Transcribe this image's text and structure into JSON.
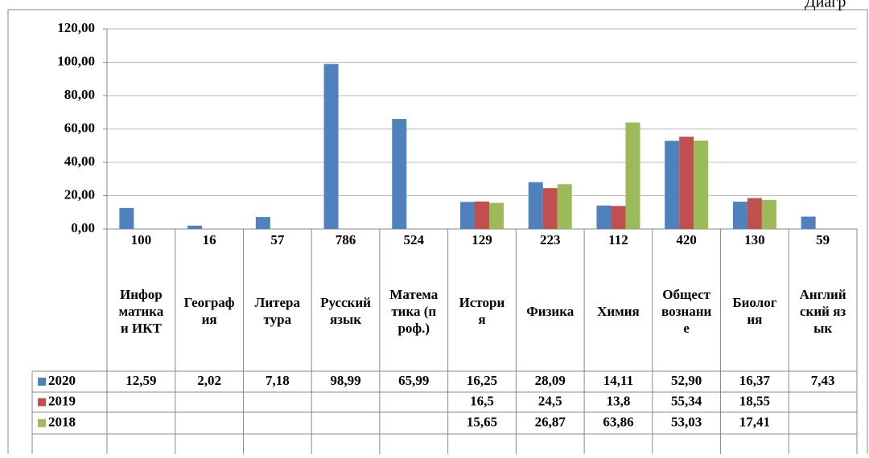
{
  "chart_data": {
    "type": "bar",
    "title": "Диагр",
    "categories": [
      "Информатика и ИКТ",
      "География",
      "Литература",
      "Русский язык",
      "Математика (проф.)",
      "История",
      "Физика",
      "Химия",
      "Обществознание",
      "Биология",
      "Английский язык"
    ],
    "participants": [
      100,
      16,
      57,
      786,
      524,
      129,
      223,
      112,
      420,
      130,
      59
    ],
    "series": [
      {
        "name": "2020",
        "color": "#4f81bd",
        "values": [
          12.59,
          2.02,
          7.18,
          98.99,
          65.99,
          16.25,
          28.09,
          14.11,
          52.9,
          16.37,
          7.43
        ],
        "value_labels": [
          "12,59",
          "2,02",
          "7,18",
          "98,99",
          "65,99",
          "16,25",
          "28,09",
          "14,11",
          "52,90",
          "16,37",
          "7,43"
        ]
      },
      {
        "name": "2019",
        "color": "#c0504d",
        "values": [
          null,
          null,
          null,
          null,
          null,
          16.5,
          24.5,
          13.8,
          55.34,
          18.55,
          null
        ],
        "value_labels": [
          null,
          null,
          null,
          null,
          null,
          "16,5",
          "24,5",
          "13,8",
          "55,34",
          "18,55",
          null
        ]
      },
      {
        "name": "2018",
        "color": "#9bbb59",
        "values": [
          null,
          null,
          null,
          null,
          null,
          15.65,
          26.87,
          63.86,
          53.03,
          17.41,
          null
        ],
        "value_labels": [
          null,
          null,
          null,
          null,
          null,
          "15,65",
          "26,87",
          "63,86",
          "53,03",
          "17,41",
          null
        ]
      }
    ],
    "ylim": [
      0,
      120
    ],
    "yticks": [
      {
        "value": 0,
        "label": "0,00"
      },
      {
        "value": 20,
        "label": "20,00"
      },
      {
        "value": 40,
        "label": "40,00"
      },
      {
        "value": 60,
        "label": "60,00"
      },
      {
        "value": 80,
        "label": "80,00"
      },
      {
        "value": 100,
        "label": "100,00"
      },
      {
        "value": 120,
        "label": "120,00"
      }
    ],
    "grid": true
  }
}
